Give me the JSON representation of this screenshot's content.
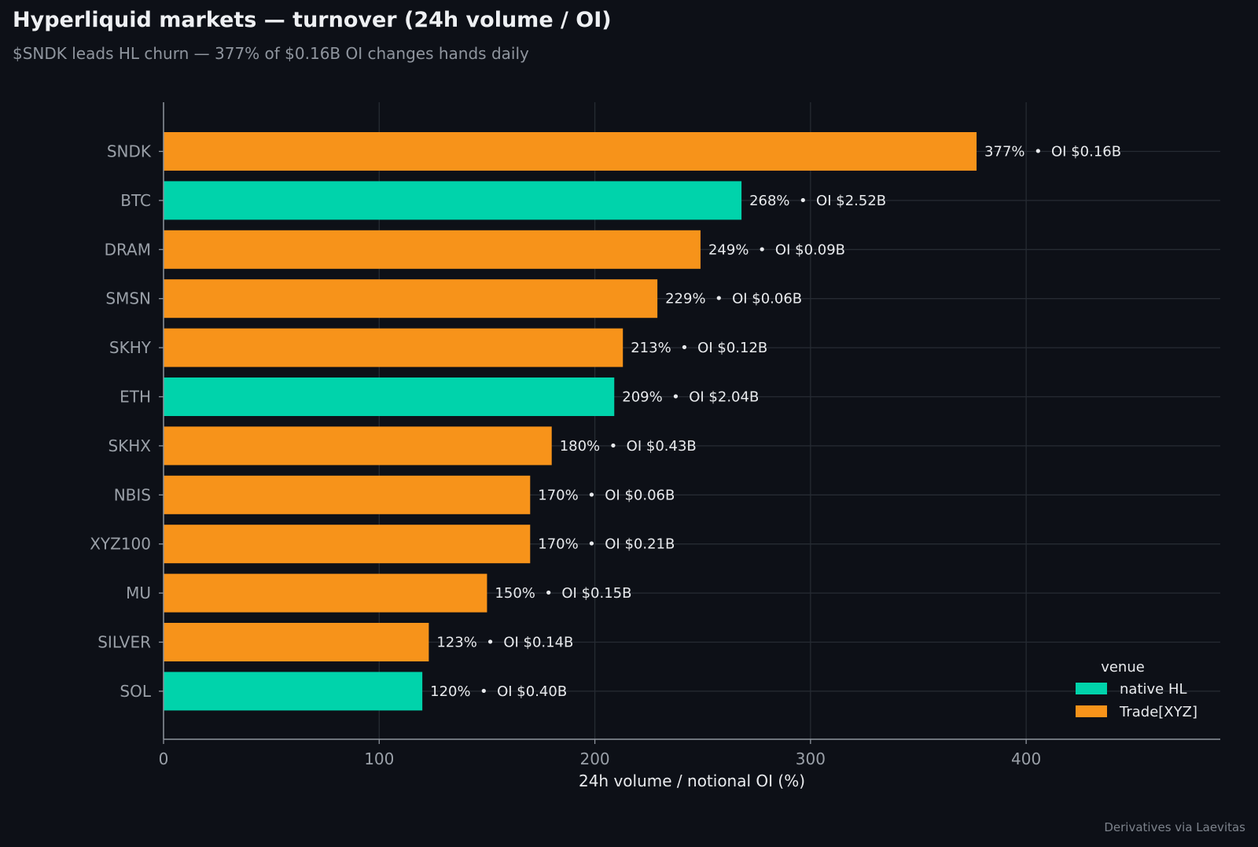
{
  "title": "Hyperliquid markets — turnover (24h volume / OI)",
  "subtitle": "$SNDK leads HL churn — 377% of $0.16B OI changes hands daily",
  "credit": "Derivatives via Laevitas",
  "colors": {
    "background": "#0d1017",
    "native_hl": "#00d3ab",
    "trade_xyz": "#f7931a",
    "grid": "#262b33",
    "axis": "#8f959e",
    "tick_label": "#9aa0a8",
    "bar_label": "#e8eaed"
  },
  "chart_data": {
    "type": "bar",
    "orientation": "horizontal",
    "xlabel": "24h volume / notional OI (%)",
    "ylabel": "",
    "xlim": [
      0,
      490
    ],
    "xticks": [
      0,
      100,
      200,
      300,
      400
    ],
    "grid": true,
    "legend": {
      "title": "venue",
      "placement": "bottom-right",
      "entries": [
        {
          "name": "native HL",
          "color": "#00d3ab"
        },
        {
          "name": "Trade[XYZ]",
          "color": "#f7931a"
        }
      ]
    },
    "categories": [
      "SNDK",
      "BTC",
      "DRAM",
      "SMSN",
      "SKHY",
      "ETH",
      "SKHX",
      "NBIS",
      "XYZ100",
      "MU",
      "SILVER",
      "SOL"
    ],
    "values": [
      377,
      268,
      249,
      229,
      213,
      209,
      180,
      170,
      170,
      150,
      123,
      120
    ],
    "venues": [
      "Trade[XYZ]",
      "native HL",
      "Trade[XYZ]",
      "Trade[XYZ]",
      "Trade[XYZ]",
      "native HL",
      "Trade[XYZ]",
      "Trade[XYZ]",
      "Trade[XYZ]",
      "Trade[XYZ]",
      "Trade[XYZ]",
      "native HL"
    ],
    "data_labels": [
      "377%  •  OI $0.16B",
      "268%  •  OI $2.52B",
      "249%  •  OI $0.09B",
      "229%  •  OI $0.06B",
      "213%  •  OI $0.12B",
      "209%  •  OI $2.04B",
      "180%  •  OI $0.43B",
      "170%  •  OI $0.06B",
      "170%  •  OI $0.21B",
      "150%  •  OI $0.15B",
      "123%  •  OI $0.14B",
      "120%  •  OI $0.40B"
    ]
  }
}
